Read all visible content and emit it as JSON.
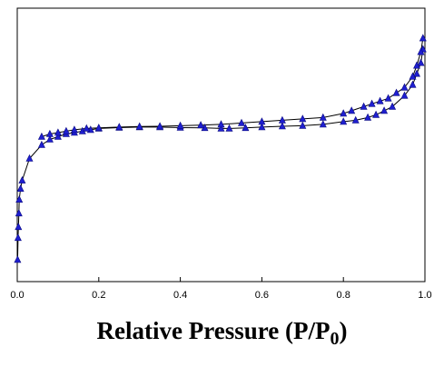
{
  "chart_data": {
    "type": "line",
    "title": "",
    "xlabel_main": "Relative Pressure (P/P",
    "xlabel_sub": "0",
    "xlabel_tail": ")",
    "ylabel": "",
    "xlim": [
      0,
      1.0
    ],
    "ylim": [
      0,
      1
    ],
    "xticks": [
      "0.0",
      "0.2",
      "0.4",
      "0.6",
      "0.8",
      "1.0"
    ],
    "grid": false,
    "legend": "none",
    "marker": "triangle",
    "marker_color": "#1f1fd0",
    "line_color": "#000000",
    "series": [
      {
        "x": [
          0.001,
          0.002,
          0.003,
          0.004,
          0.005,
          0.008,
          0.012,
          0.03,
          0.06,
          0.08,
          0.1,
          0.12,
          0.14,
          0.16,
          0.18,
          0.2,
          0.25,
          0.3,
          0.35,
          0.4,
          0.46,
          0.5,
          0.52,
          0.56,
          0.6,
          0.65,
          0.7,
          0.75,
          0.8,
          0.83,
          0.86,
          0.88,
          0.9,
          0.92,
          0.95,
          0.97,
          0.98,
          0.99,
          0.995
        ],
        "y": [
          0.08,
          0.16,
          0.2,
          0.25,
          0.3,
          0.34,
          0.37,
          0.45,
          0.5,
          0.52,
          0.53,
          0.54,
          0.545,
          0.55,
          0.555,
          0.56,
          0.563,
          0.565,
          0.565,
          0.563,
          0.562,
          0.56,
          0.56,
          0.562,
          0.565,
          0.568,
          0.57,
          0.575,
          0.585,
          0.59,
          0.6,
          0.61,
          0.625,
          0.64,
          0.68,
          0.72,
          0.76,
          0.8,
          0.85
        ]
      },
      {
        "x": [
          0.995,
          0.99,
          0.98,
          0.97,
          0.95,
          0.93,
          0.91,
          0.89,
          0.87,
          0.85,
          0.82,
          0.8,
          0.75,
          0.7,
          0.65,
          0.6,
          0.55,
          0.5,
          0.45,
          0.4,
          0.35,
          0.3,
          0.25,
          0.2,
          0.17,
          0.14,
          0.12,
          0.1,
          0.08,
          0.06
        ],
        "y": [
          0.89,
          0.84,
          0.79,
          0.75,
          0.71,
          0.69,
          0.67,
          0.66,
          0.65,
          0.64,
          0.625,
          0.615,
          0.6,
          0.595,
          0.59,
          0.585,
          0.58,
          0.575,
          0.572,
          0.57,
          0.568,
          0.567,
          0.565,
          0.562,
          0.56,
          0.555,
          0.55,
          0.545,
          0.54,
          0.53
        ]
      }
    ]
  }
}
